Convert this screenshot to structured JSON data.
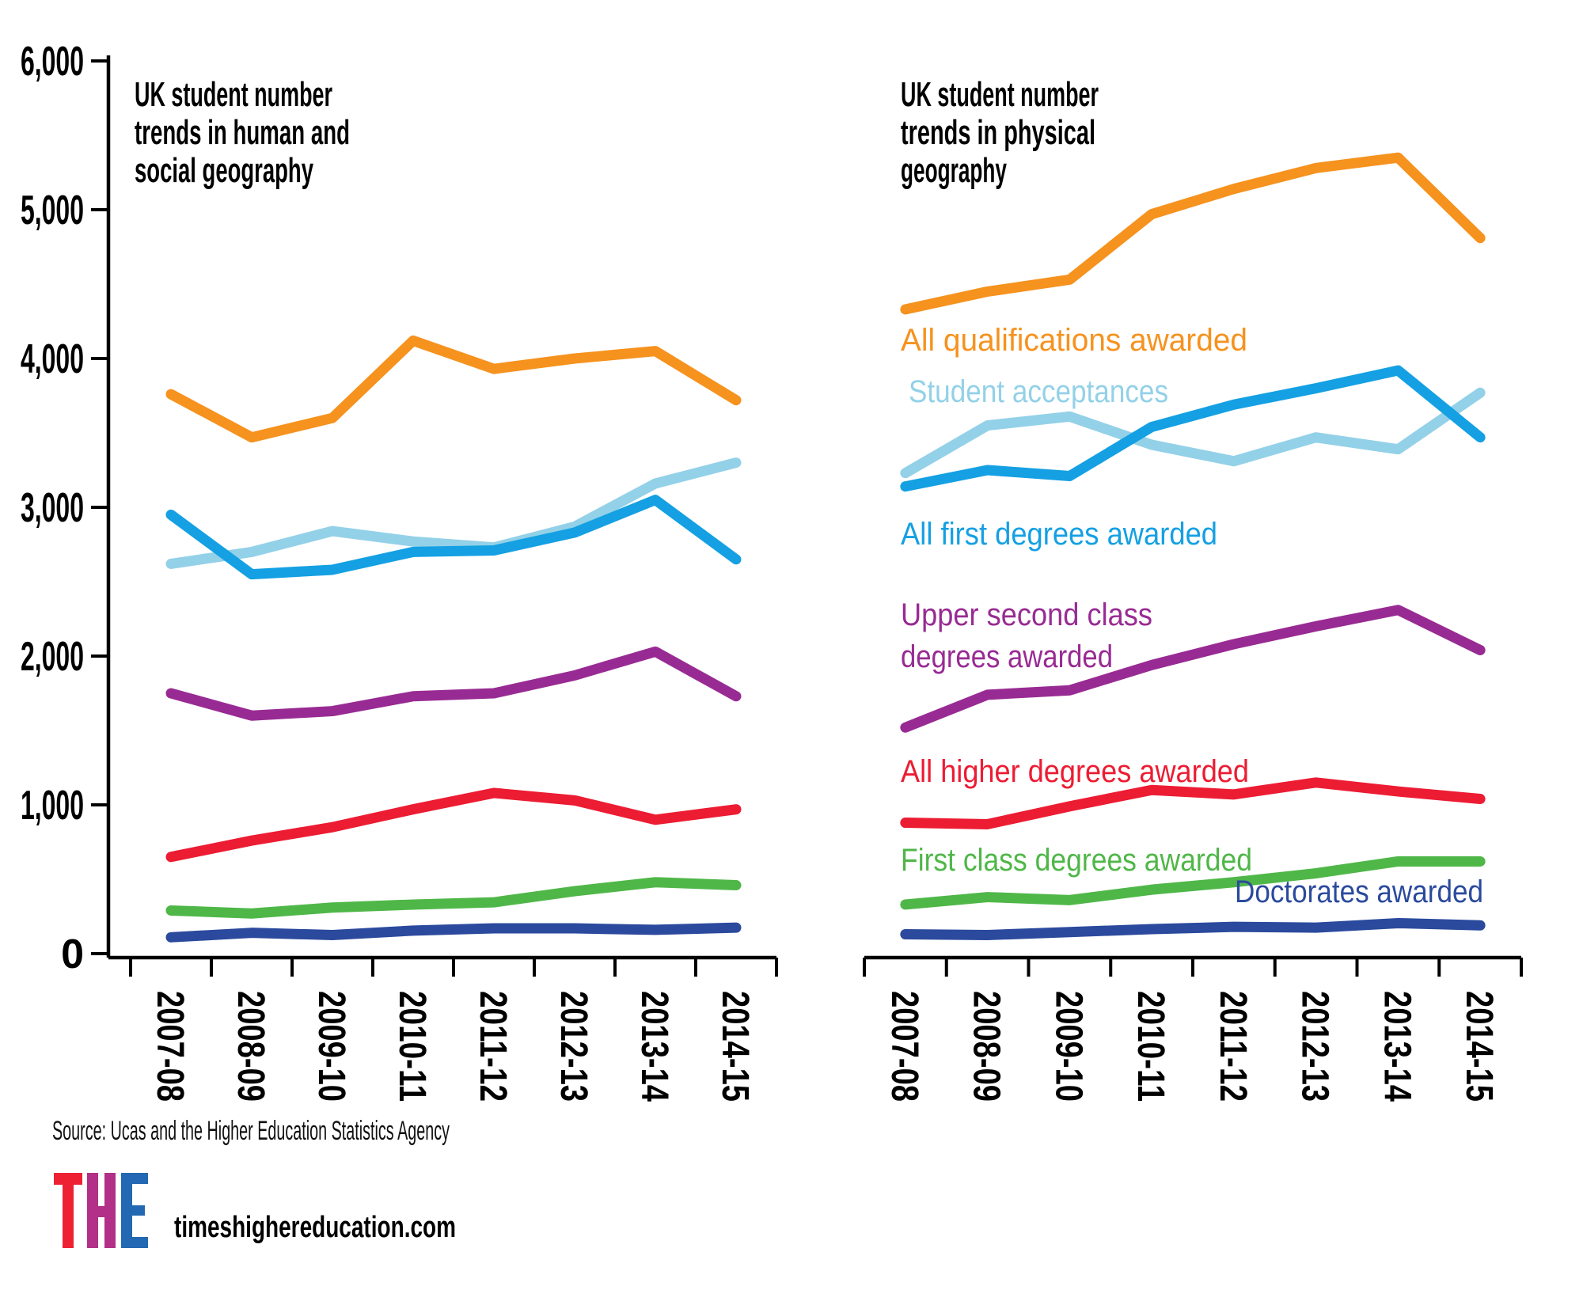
{
  "colors": {
    "orange": "#F6921E",
    "lightblue": "#93D1E8",
    "blue": "#14A0E3",
    "purple": "#982B93",
    "red": "#EC1C33",
    "green": "#4FB748",
    "navy": "#2B4A9D",
    "axis": "#000000"
  },
  "chart_data": [
    {
      "type": "line",
      "title": "UK student number trends in human and social geography",
      "title_lines": [
        "UK student number",
        "trends in human and",
        "social geography"
      ],
      "categories": [
        "2007-08",
        "2008-09",
        "2009-10",
        "2010-11",
        "2011-12",
        "2012-13",
        "2013-14",
        "2014-15"
      ],
      "ylim": [
        0,
        6000
      ],
      "ytick_labels": [
        "6,000",
        "5,000",
        "4,000",
        "3,000",
        "2,000",
        "1,000",
        "0"
      ],
      "grid": false,
      "series": [
        {
          "name": "All qualifications awarded",
          "color": "#F6921E",
          "values": [
            3760,
            3470,
            3600,
            4120,
            3930,
            4000,
            4050,
            3720
          ]
        },
        {
          "name": "Student acceptances",
          "color": "#93D1E8",
          "values": [
            2620,
            2700,
            2840,
            2770,
            2730,
            2870,
            3160,
            3300
          ]
        },
        {
          "name": "All first degrees awarded",
          "color": "#14A0E3",
          "values": [
            2950,
            2550,
            2580,
            2700,
            2710,
            2830,
            3050,
            2650
          ]
        },
        {
          "name": "Upper second class degrees awarded",
          "color": "#982B93",
          "values": [
            1750,
            1600,
            1630,
            1730,
            1750,
            1870,
            2030,
            1730
          ]
        },
        {
          "name": "All higher degrees awarded",
          "color": "#EC1C33",
          "values": [
            650,
            760,
            850,
            970,
            1080,
            1030,
            900,
            970
          ]
        },
        {
          "name": "First class degrees awarded",
          "color": "#4FB748",
          "values": [
            290,
            270,
            310,
            330,
            345,
            420,
            480,
            460
          ]
        },
        {
          "name": "Doctorates awarded",
          "color": "#2B4A9D",
          "values": [
            110,
            140,
            125,
            155,
            170,
            170,
            160,
            175
          ]
        }
      ]
    },
    {
      "type": "line",
      "title": "UK student number trends in physical geography",
      "title_lines": [
        "UK student number",
        "trends in physical",
        "geography"
      ],
      "categories": [
        "2007-08",
        "2008-09",
        "2009-10",
        "2010-11",
        "2011-12",
        "2012-13",
        "2013-14",
        "2014-15"
      ],
      "ylim": [
        0,
        6000
      ],
      "grid": false,
      "legend_position": "inline-labels",
      "series": [
        {
          "name": "All qualifications awarded",
          "color": "#F6921E",
          "values": [
            4330,
            4450,
            4530,
            4970,
            5140,
            5280,
            5350,
            4810
          ]
        },
        {
          "name": "Student acceptances",
          "color": "#93D1E8",
          "values": [
            3230,
            3550,
            3610,
            3420,
            3310,
            3470,
            3390,
            3770
          ]
        },
        {
          "name": "All first degrees awarded",
          "color": "#14A0E3",
          "values": [
            3140,
            3250,
            3210,
            3540,
            3690,
            3800,
            3920,
            3470
          ]
        },
        {
          "name": "Upper second class degrees awarded",
          "color": "#982B93",
          "values": [
            1520,
            1740,
            1770,
            1940,
            2080,
            2200,
            2310,
            2040
          ]
        },
        {
          "name": "All higher degrees awarded",
          "color": "#EC1C33",
          "values": [
            880,
            870,
            990,
            1100,
            1070,
            1150,
            1090,
            1040
          ]
        },
        {
          "name": "First class degrees awarded",
          "color": "#4FB748",
          "values": [
            330,
            380,
            360,
            430,
            480,
            540,
            620,
            620
          ]
        },
        {
          "name": "Doctorates awarded",
          "color": "#2B4A9D",
          "values": [
            130,
            125,
            145,
            165,
            180,
            175,
            205,
            190
          ]
        }
      ],
      "labels": [
        "All qualifications awarded",
        "Student acceptances",
        "All first degrees awarded",
        "Upper second class",
        "degrees awarded",
        "All higher degrees awarded",
        "First class degrees awarded",
        "Doctorates awarded"
      ]
    }
  ],
  "footer": {
    "source": "Source: Ucas and the Higher Education Statistics Agency",
    "site": "timeshighereducation.com",
    "logo_text": "THE",
    "logo_colors": [
      "#EE2133",
      "#B23087",
      "#2268B2"
    ]
  }
}
